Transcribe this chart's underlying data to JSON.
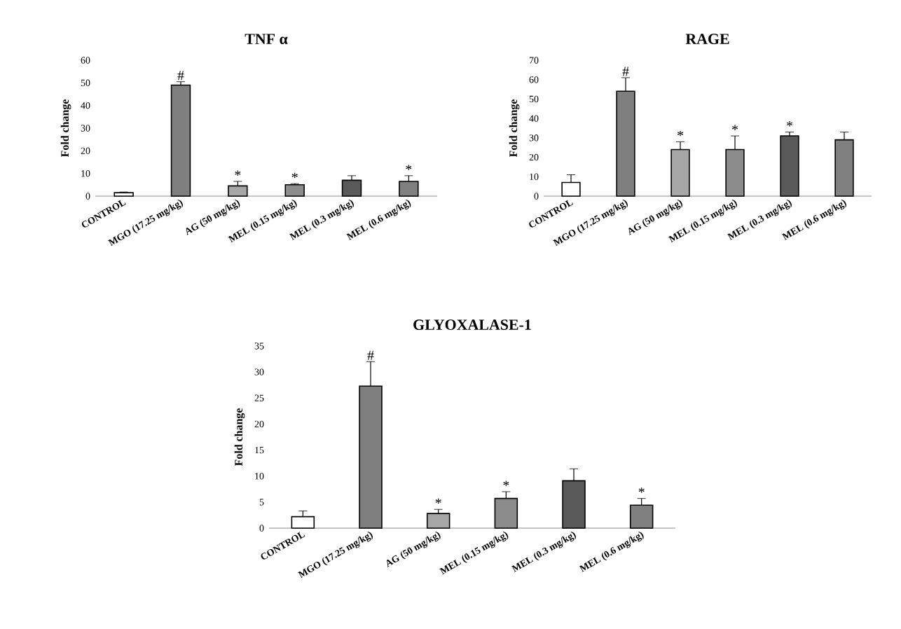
{
  "chart_data": [
    {
      "type": "bar",
      "title": "TNF α",
      "ylabel": "Fold change",
      "categories": [
        "CONTROL",
        "MGO (17.25 mg/kg)",
        "AG (50 mg/kg)",
        "MEL (0.15 mg/kg)",
        "MEL (0.3 mg/kg)",
        "MEL (0.6 mg/kg)"
      ],
      "values": [
        1.5,
        49,
        4.5,
        5,
        7,
        6.5
      ],
      "errors": [
        0.3,
        1.5,
        2,
        0.5,
        2,
        2.5
      ],
      "colors": [
        "#ffffff",
        "#7f7f7f",
        "#a6a6a6",
        "#8c8c8c",
        "#595959",
        "#808080"
      ],
      "ylim": [
        0,
        60
      ],
      "yticks": [
        0,
        10,
        20,
        30,
        40,
        50,
        60
      ],
      "annotations": [
        {
          "text": "#",
          "x": "MGO (17.25 mg/kg)",
          "y": 50.5
        },
        {
          "text": "*",
          "x": "AG (50 mg/kg)",
          "y": 6.5
        },
        {
          "text": "*",
          "x": "MEL (0.15 mg/kg)",
          "y": 5.5
        },
        {
          "text": "*",
          "x": "MEL (0.6 mg/kg)",
          "y": 9
        }
      ]
    },
    {
      "type": "bar",
      "title": "RAGE",
      "ylabel": "Fold change",
      "categories": [
        "CONTROL",
        "MGO (17.25 mg/kg)",
        "AG (50 mg/kg)",
        "MEL (0.15 mg/kg)",
        "MEL (0.3 mg/kg)",
        "MEL (0.6 mg/kg)"
      ],
      "values": [
        7,
        54,
        24,
        24,
        31,
        29
      ],
      "errors": [
        4,
        7,
        4,
        7,
        2,
        4
      ],
      "colors": [
        "#ffffff",
        "#7f7f7f",
        "#a6a6a6",
        "#8c8c8c",
        "#595959",
        "#808080"
      ],
      "ylim": [
        0,
        70
      ],
      "yticks": [
        0,
        10,
        20,
        30,
        40,
        50,
        60,
        70
      ],
      "annotations": [
        {
          "text": "#",
          "x": "MGO (17.25 mg/kg)",
          "y": 61
        },
        {
          "text": "*",
          "x": "AG (50 mg/kg)",
          "y": 28
        },
        {
          "text": "*",
          "x": "MEL (0.15 mg/kg)",
          "y": 31
        },
        {
          "text": "*",
          "x": "MEL (0.3 mg/kg)",
          "y": 33
        }
      ]
    },
    {
      "type": "bar",
      "title": "GLYOXALASE-1",
      "ylabel": "Fold change",
      "categories": [
        "CONTROL",
        "MGO (17.25 mg/kg)",
        "AG (50 mg/kg)",
        "MEL (0.15 mg/kg)",
        "MEL (0.3 mg/kg)",
        "MEL (0.6 mg/kg)"
      ],
      "values": [
        2.2,
        27.3,
        2.8,
        5.7,
        9.1,
        4.4
      ],
      "errors": [
        1.1,
        4.7,
        0.8,
        1.3,
        2.3,
        1.3
      ],
      "colors": [
        "#ffffff",
        "#7f7f7f",
        "#a6a6a6",
        "#8c8c8c",
        "#595959",
        "#808080"
      ],
      "ylim": [
        0,
        35
      ],
      "yticks": [
        0,
        5,
        10,
        15,
        20,
        25,
        30,
        35
      ],
      "annotations": [
        {
          "text": "#",
          "x": "MGO (17.25 mg/kg)",
          "y": 32
        },
        {
          "text": "*",
          "x": "AG (50 mg/kg)",
          "y": 3.6
        },
        {
          "text": "*",
          "x": "MEL (0.15 mg/kg)",
          "y": 7
        },
        {
          "text": "*",
          "x": "MEL (0.6 mg/kg)",
          "y": 5.7
        }
      ]
    }
  ]
}
